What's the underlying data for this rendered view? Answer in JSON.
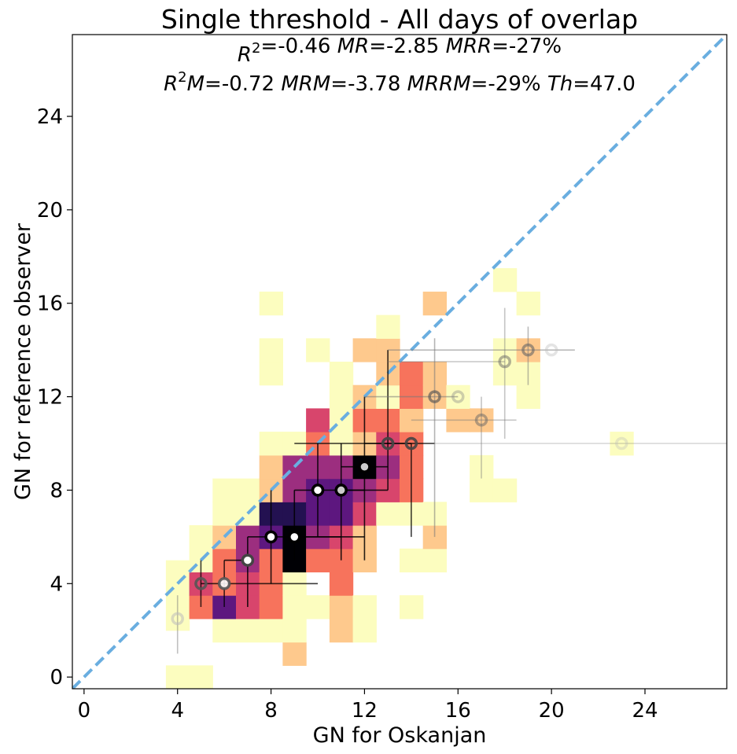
{
  "chart_data": {
    "type": "heatmap",
    "title": "Single threshold - All days of overlap",
    "stats_line1": [
      {
        "sym": "R",
        "sup": "2",
        "val": "=-0.46 "
      },
      {
        "sym": "MR",
        "val": "=-2.85 "
      },
      {
        "sym": "MRR",
        "val": "=-27%"
      }
    ],
    "stats_line2": [
      {
        "sym": "R",
        "sup": "2",
        "tail": "M",
        "val": "=-0.72 "
      },
      {
        "sym": "MRM",
        "val": "=-3.78 "
      },
      {
        "sym": "MRRM",
        "val": "=-29% "
      },
      {
        "sym": "Th",
        "val": "=47.0"
      }
    ],
    "xlabel": "GN for Oskanjan",
    "ylabel": "GN for reference observer",
    "xlim": [
      -0.5,
      27.5
    ],
    "ylim": [
      -0.5,
      27.5
    ],
    "xticks": [
      "0",
      "4",
      "8",
      "12",
      "16",
      "20",
      "24"
    ],
    "yticks": [
      "0",
      "4",
      "8",
      "12",
      "16",
      "20",
      "24"
    ],
    "colormap": "magma_r",
    "colors": {
      "identity_line": "#6aaee0",
      "bins": [
        "#fcfdbf",
        "#fec98d",
        "#f7735c",
        "#d8456c",
        "#9c2e7f",
        "#5d177f",
        "#231151",
        "#000004"
      ]
    },
    "bins": [
      [
        4,
        0,
        0
      ],
      [
        5,
        0,
        0
      ],
      [
        4,
        2.5,
        0
      ],
      [
        4,
        3.5,
        0
      ],
      [
        4,
        4.5,
        0
      ],
      [
        5,
        3,
        2
      ],
      [
        5,
        4,
        3
      ],
      [
        5,
        5,
        0
      ],
      [
        5,
        6,
        0
      ],
      [
        6,
        2,
        0
      ],
      [
        6,
        3,
        5
      ],
      [
        6,
        4,
        2
      ],
      [
        6,
        5,
        2
      ],
      [
        6,
        6,
        1
      ],
      [
        6,
        7,
        0
      ],
      [
        6,
        8,
        0
      ],
      [
        7,
        2,
        0
      ],
      [
        7,
        3,
        3
      ],
      [
        7,
        4,
        3
      ],
      [
        7,
        5,
        4
      ],
      [
        7,
        6,
        4
      ],
      [
        7,
        7,
        0
      ],
      [
        7,
        8,
        0
      ],
      [
        8,
        2,
        0
      ],
      [
        8,
        3,
        2
      ],
      [
        8,
        4,
        2
      ],
      [
        8,
        5,
        2
      ],
      [
        8,
        6,
        5
      ],
      [
        8,
        7,
        6
      ],
      [
        8,
        8,
        1
      ],
      [
        8,
        9,
        1
      ],
      [
        8,
        10,
        0
      ],
      [
        8,
        13,
        0
      ],
      [
        8,
        14,
        0
      ],
      [
        8,
        16,
        0
      ],
      [
        9,
        1,
        1
      ],
      [
        9,
        2,
        0
      ],
      [
        9,
        3,
        0
      ],
      [
        9,
        4,
        0
      ],
      [
        9,
        5,
        7
      ],
      [
        9,
        6,
        7
      ],
      [
        9,
        7,
        6
      ],
      [
        9,
        8,
        4
      ],
      [
        9,
        9,
        4
      ],
      [
        9,
        10,
        0
      ],
      [
        10,
        3,
        0
      ],
      [
        10,
        5,
        2
      ],
      [
        10,
        6,
        4
      ],
      [
        10,
        7,
        5
      ],
      [
        10,
        8,
        5
      ],
      [
        10,
        9,
        4
      ],
      [
        10,
        10,
        2
      ],
      [
        10,
        11,
        3
      ],
      [
        10,
        14,
        0
      ],
      [
        11,
        2,
        1
      ],
      [
        11,
        3,
        1
      ],
      [
        11,
        4,
        2
      ],
      [
        11,
        5,
        2
      ],
      [
        11,
        6,
        3
      ],
      [
        11,
        7,
        5
      ],
      [
        11,
        8,
        5
      ],
      [
        11,
        9,
        4
      ],
      [
        11,
        10,
        0
      ],
      [
        11,
        11,
        0
      ],
      [
        11,
        12,
        0
      ],
      [
        11,
        13,
        0
      ],
      [
        12,
        2,
        0
      ],
      [
        12,
        3,
        0
      ],
      [
        12,
        5,
        1
      ],
      [
        12,
        6,
        1
      ],
      [
        12,
        7,
        3
      ],
      [
        12,
        8,
        4
      ],
      [
        12,
        9,
        7
      ],
      [
        12,
        10,
        1
      ],
      [
        12,
        11,
        2
      ],
      [
        12,
        12,
        1
      ],
      [
        12,
        14,
        1
      ],
      [
        13,
        7,
        0
      ],
      [
        13,
        8,
        3
      ],
      [
        13,
        9,
        4
      ],
      [
        13,
        10,
        3
      ],
      [
        13,
        11,
        2
      ],
      [
        13,
        12,
        0
      ],
      [
        13,
        13,
        1
      ],
      [
        13,
        14,
        1
      ],
      [
        13,
        15,
        0
      ],
      [
        14,
        3,
        0
      ],
      [
        14,
        5,
        0
      ],
      [
        14,
        7,
        0
      ],
      [
        14,
        8,
        2
      ],
      [
        14,
        9,
        2
      ],
      [
        14,
        10,
        2
      ],
      [
        14,
        11,
        1
      ],
      [
        14,
        12,
        2
      ],
      [
        14,
        13,
        2
      ],
      [
        15,
        5,
        0
      ],
      [
        15,
        6,
        1
      ],
      [
        15,
        7,
        0
      ],
      [
        15,
        12,
        1
      ],
      [
        15,
        13,
        1
      ],
      [
        15,
        16,
        1
      ],
      [
        16,
        11,
        1
      ],
      [
        16,
        12,
        0
      ],
      [
        17,
        8,
        0
      ],
      [
        17,
        9,
        0
      ],
      [
        17,
        11,
        1
      ],
      [
        18,
        8,
        0
      ],
      [
        18,
        13,
        0
      ],
      [
        18,
        14,
        0
      ],
      [
        18,
        17,
        0
      ],
      [
        19,
        12,
        0
      ],
      [
        19,
        13,
        0
      ],
      [
        19,
        14,
        1
      ],
      [
        19,
        16,
        0
      ],
      [
        23,
        10,
        0
      ]
    ],
    "medians": [
      {
        "x": 4,
        "y": 2.5,
        "xerr": [
          0,
          0
        ],
        "yerr": [
          1.5,
          1
        ],
        "ring": "#bbbbbb",
        "fill": "none",
        "op": 0.55
      },
      {
        "x": 5,
        "y": 4,
        "xerr": [
          0,
          1
        ],
        "yerr": [
          1,
          1
        ],
        "ring": "#555555",
        "fill": "none",
        "op": 0.9
      },
      {
        "x": 6,
        "y": 4,
        "xerr": [
          0,
          4
        ],
        "yerr": [
          1,
          1
        ],
        "ring": "#555555",
        "fill": "#ffffff",
        "op": 0.9
      },
      {
        "x": 7,
        "y": 5,
        "xerr": [
          1,
          0
        ],
        "yerr": [
          2,
          1
        ],
        "ring": "#444444",
        "fill": "#ffffff",
        "op": 1
      },
      {
        "x": 8,
        "y": 6,
        "xerr": [
          1,
          3
        ],
        "yerr": [
          2,
          2
        ],
        "ring": "#000000",
        "fill": "#ffffff",
        "op": 1
      },
      {
        "x": 9,
        "y": 6,
        "xerr": [
          0,
          3
        ],
        "yerr": [
          1,
          2
        ],
        "ring": "#000000",
        "fill": "#ffffff",
        "op": 1
      },
      {
        "x": 10,
        "y": 8,
        "xerr": [
          1,
          3
        ],
        "yerr": [
          2,
          2
        ],
        "ring": "#000000",
        "fill": "#ffffff",
        "op": 1
      },
      {
        "x": 11,
        "y": 8,
        "xerr": [
          0,
          1
        ],
        "yerr": [
          3,
          2
        ],
        "ring": "#000000",
        "fill": "#cccccc",
        "op": 1
      },
      {
        "x": 12,
        "y": 9,
        "xerr": [
          1,
          1
        ],
        "yerr": [
          4,
          3
        ],
        "ring": "#000000",
        "fill": "#cccccc",
        "op": 1
      },
      {
        "x": 13,
        "y": 10,
        "xerr": [
          4,
          2
        ],
        "yerr": [
          2,
          4
        ],
        "ring": "#444444",
        "fill": "none",
        "op": 0.95
      },
      {
        "x": 14,
        "y": 10,
        "xerr": [
          2,
          0
        ],
        "yerr": [
          4,
          0
        ],
        "ring": "#444444",
        "fill": "none",
        "op": 0.9
      },
      {
        "x": 15,
        "y": 12,
        "xerr": [
          3,
          1
        ],
        "yerr": [
          6,
          2.5
        ],
        "ring": "#555555",
        "fill": "none",
        "op": 0.65
      },
      {
        "x": 16,
        "y": 12,
        "xerr": [
          0,
          0
        ],
        "yerr": [
          0,
          0
        ],
        "ring": "#888888",
        "fill": "none",
        "op": 0.4
      },
      {
        "x": 17,
        "y": 11,
        "xerr": [
          3,
          1.5
        ],
        "yerr": [
          2.5,
          1
        ],
        "ring": "#666666",
        "fill": "none",
        "op": 0.5
      },
      {
        "x": 18,
        "y": 13.5,
        "xerr": [
          5,
          0
        ],
        "yerr": [
          3.3,
          2.3
        ],
        "ring": "#666666",
        "fill": "none",
        "op": 0.5
      },
      {
        "x": 19,
        "y": 14,
        "xerr": [
          6,
          2
        ],
        "yerr": [
          1.5,
          1
        ],
        "ring": "#666666",
        "fill": "none",
        "op": 0.6
      },
      {
        "x": 20,
        "y": 14,
        "xerr": [
          0,
          0
        ],
        "yerr": [
          0,
          0
        ],
        "ring": "#bbbbbb",
        "fill": "none",
        "op": 0.4
      },
      {
        "x": 23,
        "y": 10,
        "xerr": [
          8,
          4.5
        ],
        "yerr": [
          0,
          0
        ],
        "ring": "#bbbbbb",
        "fill": "none",
        "op": 0.35
      }
    ]
  }
}
